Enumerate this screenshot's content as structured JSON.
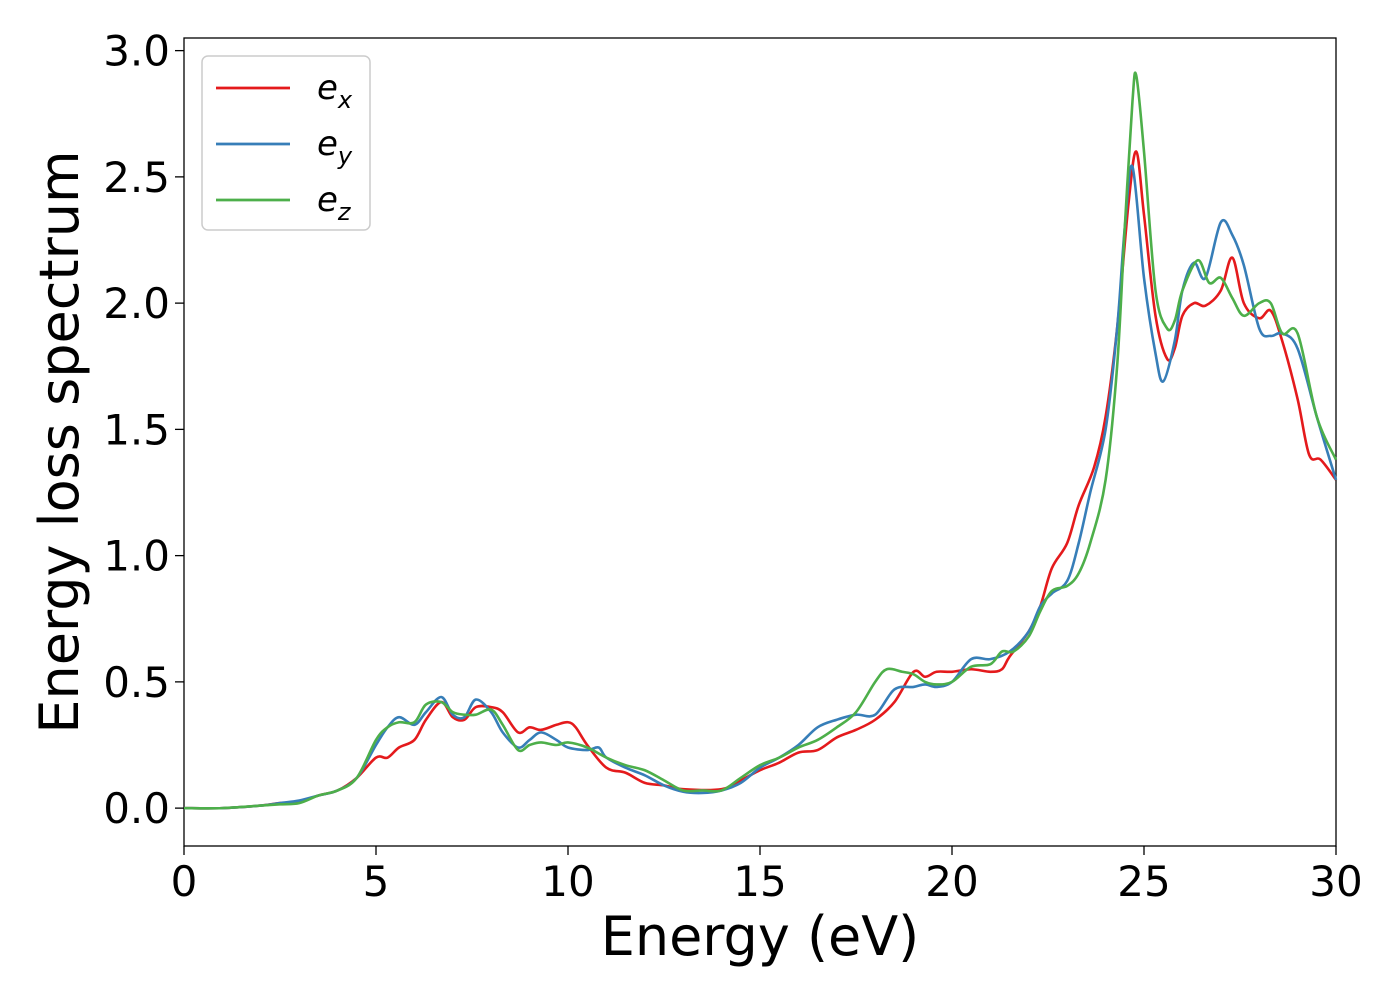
{
  "chart_data": {
    "type": "line",
    "xlabel": "Energy (eV)",
    "ylabel": "Energy loss spectrum",
    "xlim": [
      0,
      30
    ],
    "ylim": [
      -0.15,
      3.05
    ],
    "xticks": [
      0,
      5,
      10,
      15,
      20,
      25,
      30
    ],
    "yticks": [
      0.0,
      0.5,
      1.0,
      1.5,
      2.0,
      2.5,
      3.0
    ],
    "xtick_labels": [
      "0",
      "5",
      "10",
      "15",
      "20",
      "25",
      "30"
    ],
    "ytick_labels": [
      "0.0",
      "0.5",
      "1.0",
      "1.5",
      "2.0",
      "2.5",
      "3.0"
    ],
    "grid": false,
    "legend_position": "top-left",
    "series": [
      {
        "name": "e",
        "subscript": "x",
        "color": "#e41a1c",
        "points": [
          [
            0,
            0
          ],
          [
            1,
            0
          ],
          [
            2,
            0.01
          ],
          [
            2.5,
            0.02
          ],
          [
            3,
            0.025
          ],
          [
            3.5,
            0.05
          ],
          [
            4,
            0.07
          ],
          [
            4.5,
            0.12
          ],
          [
            5,
            0.2
          ],
          [
            5.3,
            0.2
          ],
          [
            5.6,
            0.24
          ],
          [
            6,
            0.27
          ],
          [
            6.3,
            0.35
          ],
          [
            6.7,
            0.42
          ],
          [
            7,
            0.36
          ],
          [
            7.3,
            0.35
          ],
          [
            7.6,
            0.4
          ],
          [
            8,
            0.4
          ],
          [
            8.3,
            0.38
          ],
          [
            8.7,
            0.3
          ],
          [
            9,
            0.32
          ],
          [
            9.3,
            0.31
          ],
          [
            9.7,
            0.33
          ],
          [
            10,
            0.34
          ],
          [
            10.2,
            0.32
          ],
          [
            10.5,
            0.25
          ],
          [
            11,
            0.16
          ],
          [
            11.5,
            0.14
          ],
          [
            12,
            0.1
          ],
          [
            12.5,
            0.09
          ],
          [
            13,
            0.075
          ],
          [
            14,
            0.075
          ],
          [
            14.5,
            0.11
          ],
          [
            15,
            0.15
          ],
          [
            15.5,
            0.18
          ],
          [
            16,
            0.22
          ],
          [
            16.5,
            0.23
          ],
          [
            17,
            0.28
          ],
          [
            17.5,
            0.31
          ],
          [
            18,
            0.35
          ],
          [
            18.5,
            0.42
          ],
          [
            19,
            0.54
          ],
          [
            19.3,
            0.52
          ],
          [
            19.6,
            0.54
          ],
          [
            20,
            0.54
          ],
          [
            20.5,
            0.55
          ],
          [
            21,
            0.54
          ],
          [
            21.3,
            0.55
          ],
          [
            21.5,
            0.6
          ],
          [
            22,
            0.7
          ],
          [
            22.3,
            0.8
          ],
          [
            22.6,
            0.95
          ],
          [
            23,
            1.05
          ],
          [
            23.3,
            1.2
          ],
          [
            23.7,
            1.35
          ],
          [
            24,
            1.55
          ],
          [
            24.3,
            1.9
          ],
          [
            24.6,
            2.4
          ],
          [
            24.8,
            2.6
          ],
          [
            25,
            2.35
          ],
          [
            25.3,
            1.95
          ],
          [
            25.6,
            1.78
          ],
          [
            25.8,
            1.82
          ],
          [
            26,
            1.95
          ],
          [
            26.3,
            2.0
          ],
          [
            26.6,
            1.99
          ],
          [
            27,
            2.05
          ],
          [
            27.3,
            2.18
          ],
          [
            27.6,
            2.0
          ],
          [
            28,
            1.94
          ],
          [
            28.3,
            1.97
          ],
          [
            28.6,
            1.85
          ],
          [
            29,
            1.62
          ],
          [
            29.3,
            1.4
          ],
          [
            29.6,
            1.38
          ],
          [
            30,
            1.3
          ]
        ]
      },
      {
        "name": "e",
        "subscript": "y",
        "color": "#377eb8",
        "points": [
          [
            0,
            0
          ],
          [
            1,
            0
          ],
          [
            2,
            0.01
          ],
          [
            2.5,
            0.02
          ],
          [
            3,
            0.03
          ],
          [
            3.5,
            0.05
          ],
          [
            4,
            0.07
          ],
          [
            4.5,
            0.12
          ],
          [
            5,
            0.25
          ],
          [
            5.3,
            0.32
          ],
          [
            5.6,
            0.36
          ],
          [
            6,
            0.33
          ],
          [
            6.3,
            0.38
          ],
          [
            6.7,
            0.44
          ],
          [
            7,
            0.37
          ],
          [
            7.3,
            0.36
          ],
          [
            7.6,
            0.43
          ],
          [
            8,
            0.38
          ],
          [
            8.3,
            0.3
          ],
          [
            8.7,
            0.24
          ],
          [
            9,
            0.27
          ],
          [
            9.3,
            0.3
          ],
          [
            9.7,
            0.27
          ],
          [
            10,
            0.24
          ],
          [
            10.5,
            0.23
          ],
          [
            10.8,
            0.24
          ],
          [
            11,
            0.2
          ],
          [
            11.5,
            0.16
          ],
          [
            12,
            0.13
          ],
          [
            12.5,
            0.09
          ],
          [
            13,
            0.065
          ],
          [
            13.5,
            0.06
          ],
          [
            14,
            0.07
          ],
          [
            14.5,
            0.1
          ],
          [
            15,
            0.16
          ],
          [
            15.5,
            0.2
          ],
          [
            16,
            0.25
          ],
          [
            16.5,
            0.32
          ],
          [
            17,
            0.35
          ],
          [
            17.5,
            0.37
          ],
          [
            18,
            0.37
          ],
          [
            18.5,
            0.47
          ],
          [
            19,
            0.48
          ],
          [
            19.3,
            0.49
          ],
          [
            19.6,
            0.48
          ],
          [
            20,
            0.5
          ],
          [
            20.5,
            0.59
          ],
          [
            21,
            0.59
          ],
          [
            21.5,
            0.62
          ],
          [
            22,
            0.7
          ],
          [
            22.3,
            0.8
          ],
          [
            22.6,
            0.85
          ],
          [
            23,
            0.9
          ],
          [
            23.3,
            1.05
          ],
          [
            23.6,
            1.25
          ],
          [
            24,
            1.5
          ],
          [
            24.3,
            1.9
          ],
          [
            24.5,
            2.3
          ],
          [
            24.7,
            2.54
          ],
          [
            25,
            2.1
          ],
          [
            25.3,
            1.8
          ],
          [
            25.5,
            1.69
          ],
          [
            25.8,
            1.85
          ],
          [
            26,
            2.05
          ],
          [
            26.3,
            2.16
          ],
          [
            26.6,
            2.1
          ],
          [
            27,
            2.32
          ],
          [
            27.3,
            2.27
          ],
          [
            27.6,
            2.15
          ],
          [
            28,
            1.9
          ],
          [
            28.3,
            1.87
          ],
          [
            28.6,
            1.88
          ],
          [
            29,
            1.82
          ],
          [
            29.5,
            1.55
          ],
          [
            30,
            1.3
          ]
        ]
      },
      {
        "name": "e",
        "subscript": "z",
        "color": "#4daf4a",
        "points": [
          [
            0,
            0
          ],
          [
            1,
            0
          ],
          [
            2,
            0.01
          ],
          [
            2.5,
            0.015
          ],
          [
            3,
            0.02
          ],
          [
            3.5,
            0.05
          ],
          [
            4,
            0.07
          ],
          [
            4.5,
            0.12
          ],
          [
            5,
            0.27
          ],
          [
            5.3,
            0.32
          ],
          [
            5.6,
            0.34
          ],
          [
            6,
            0.34
          ],
          [
            6.3,
            0.41
          ],
          [
            6.7,
            0.42
          ],
          [
            7,
            0.38
          ],
          [
            7.3,
            0.37
          ],
          [
            7.6,
            0.37
          ],
          [
            8,
            0.39
          ],
          [
            8.3,
            0.33
          ],
          [
            8.7,
            0.23
          ],
          [
            9,
            0.25
          ],
          [
            9.3,
            0.26
          ],
          [
            9.7,
            0.25
          ],
          [
            10,
            0.26
          ],
          [
            10.5,
            0.24
          ],
          [
            11,
            0.2
          ],
          [
            11.5,
            0.17
          ],
          [
            12,
            0.15
          ],
          [
            12.5,
            0.11
          ],
          [
            13,
            0.07
          ],
          [
            13.5,
            0.07
          ],
          [
            14,
            0.07
          ],
          [
            14.5,
            0.12
          ],
          [
            15,
            0.17
          ],
          [
            15.5,
            0.2
          ],
          [
            16,
            0.24
          ],
          [
            16.5,
            0.27
          ],
          [
            17,
            0.32
          ],
          [
            17.5,
            0.38
          ],
          [
            18,
            0.5
          ],
          [
            18.3,
            0.55
          ],
          [
            18.7,
            0.54
          ],
          [
            19,
            0.53
          ],
          [
            19.3,
            0.5
          ],
          [
            19.6,
            0.49
          ],
          [
            20,
            0.5
          ],
          [
            20.5,
            0.56
          ],
          [
            21,
            0.57
          ],
          [
            21.3,
            0.62
          ],
          [
            21.6,
            0.62
          ],
          [
            22,
            0.68
          ],
          [
            22.3,
            0.78
          ],
          [
            22.6,
            0.86
          ],
          [
            23,
            0.88
          ],
          [
            23.3,
            0.93
          ],
          [
            23.6,
            1.05
          ],
          [
            24,
            1.3
          ],
          [
            24.3,
            1.75
          ],
          [
            24.5,
            2.3
          ],
          [
            24.7,
            2.8
          ],
          [
            24.8,
            2.9
          ],
          [
            25,
            2.6
          ],
          [
            25.3,
            2.05
          ],
          [
            25.6,
            1.9
          ],
          [
            25.8,
            1.93
          ],
          [
            26,
            2.05
          ],
          [
            26.4,
            2.17
          ],
          [
            26.7,
            2.08
          ],
          [
            27,
            2.1
          ],
          [
            27.3,
            2.02
          ],
          [
            27.6,
            1.95
          ],
          [
            28,
            2.0
          ],
          [
            28.3,
            2.0
          ],
          [
            28.6,
            1.88
          ],
          [
            29,
            1.88
          ],
          [
            29.5,
            1.55
          ],
          [
            30,
            1.38
          ]
        ]
      }
    ]
  }
}
